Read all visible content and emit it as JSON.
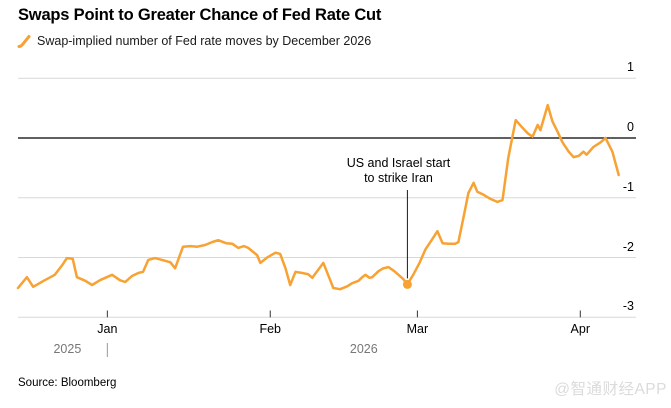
{
  "title": "Swaps Point to Greater Chance of Fed Rate Cut",
  "legend": {
    "label": "Swap-implied number of Fed rate moves by December 2026"
  },
  "source": "Source: Bloomberg",
  "watermark": "@智通财经APP",
  "annotation": {
    "line1": "US and Israel start",
    "line2": "to strike Iran",
    "day": 74.1,
    "text_center_day": 72.4
  },
  "colors": {
    "series_orange": "#F7A233",
    "grid": "#D8D8D8",
    "zero_line": "#000000",
    "tick": "#333333",
    "year_text": "#777777",
    "annotation_line": "#1a1a1a",
    "watermark_gray": "#dbdbdb"
  },
  "chart_data": {
    "type": "line",
    "title": "Swaps Point to Greater Chance of Fed Rate Cut",
    "ylabel": "",
    "xlabel": "",
    "ylim": [
      -3,
      1
    ],
    "grid": "horizontal",
    "legend_position": "top-left",
    "y_axis": {
      "ticks": [
        1,
        0,
        -1,
        -2,
        -3
      ],
      "zero_line_emphasized": true,
      "labels_side": "right"
    },
    "x_axis": {
      "month_ticks": [
        {
          "label": "Jan",
          "day": 17
        },
        {
          "label": "Feb",
          "day": 48
        },
        {
          "label": "Mar",
          "day": 76
        },
        {
          "label": "Apr",
          "day": 107
        }
      ],
      "years": [
        {
          "label": "2025",
          "day": 9.4
        },
        {
          "label": "2026",
          "day": 65.8
        }
      ],
      "year_divider_day": 17,
      "domain_days": [
        0,
        117.6
      ]
    },
    "marker": {
      "day": 74.1,
      "value": -2.45
    },
    "series": [
      {
        "name": "Swap-implied number of Fed rate moves by December 2026",
        "color": "#F7A233",
        "points": [
          [
            0,
            -2.51
          ],
          [
            1.7,
            -2.33
          ],
          [
            2.9,
            -2.49
          ],
          [
            5.1,
            -2.38
          ],
          [
            7,
            -2.29
          ],
          [
            8.4,
            -2.13
          ],
          [
            9.3,
            -2.01
          ],
          [
            10.4,
            -2.02
          ],
          [
            11.2,
            -2.33
          ],
          [
            12.8,
            -2.39
          ],
          [
            14.1,
            -2.46
          ],
          [
            15.6,
            -2.38
          ],
          [
            17.9,
            -2.29
          ],
          [
            19.4,
            -2.38
          ],
          [
            20.4,
            -2.41
          ],
          [
            21.7,
            -2.31
          ],
          [
            22.9,
            -2.26
          ],
          [
            23.8,
            -2.24
          ],
          [
            24.8,
            -2.04
          ],
          [
            26.1,
            -2.01
          ],
          [
            27.4,
            -2.04
          ],
          [
            29,
            -2.08
          ],
          [
            29.9,
            -2.18
          ],
          [
            31.4,
            -1.82
          ],
          [
            32.8,
            -1.81
          ],
          [
            34.1,
            -1.82
          ],
          [
            35.6,
            -1.79
          ],
          [
            37,
            -1.74
          ],
          [
            38.1,
            -1.71
          ],
          [
            39.6,
            -1.76
          ],
          [
            40.8,
            -1.77
          ],
          [
            41.9,
            -1.84
          ],
          [
            43,
            -1.81
          ],
          [
            43.8,
            -1.84
          ],
          [
            45.5,
            -1.96
          ],
          [
            46.1,
            -2.09
          ],
          [
            47.6,
            -1.99
          ],
          [
            49,
            -1.92
          ],
          [
            49.9,
            -1.94
          ],
          [
            50.9,
            -2.18
          ],
          [
            51.8,
            -2.46
          ],
          [
            52.8,
            -2.24
          ],
          [
            54.1,
            -2.26
          ],
          [
            55.2,
            -2.28
          ],
          [
            56,
            -2.34
          ],
          [
            57.1,
            -2.21
          ],
          [
            58.1,
            -2.09
          ],
          [
            59,
            -2.29
          ],
          [
            60,
            -2.51
          ],
          [
            61.3,
            -2.53
          ],
          [
            62.7,
            -2.48
          ],
          [
            63.6,
            -2.43
          ],
          [
            64.8,
            -2.39
          ],
          [
            65.5,
            -2.33
          ],
          [
            66.1,
            -2.29
          ],
          [
            66.9,
            -2.34
          ],
          [
            67.4,
            -2.33
          ],
          [
            68.6,
            -2.23
          ],
          [
            69.5,
            -2.18
          ],
          [
            70.5,
            -2.16
          ],
          [
            71.6,
            -2.23
          ],
          [
            72.4,
            -2.29
          ],
          [
            73.3,
            -2.36
          ],
          [
            74.1,
            -2.45
          ],
          [
            75.2,
            -2.29
          ],
          [
            76.4,
            -2.09
          ],
          [
            77.5,
            -1.87
          ],
          [
            78.7,
            -1.71
          ],
          [
            79.8,
            -1.56
          ],
          [
            80.8,
            -1.76
          ],
          [
            81.9,
            -1.77
          ],
          [
            83.2,
            -1.77
          ],
          [
            83.8,
            -1.74
          ],
          [
            84.8,
            -1.32
          ],
          [
            85.7,
            -0.92
          ],
          [
            86.7,
            -0.75
          ],
          [
            87.4,
            -0.9
          ],
          [
            88.6,
            -0.95
          ],
          [
            89.9,
            -1.02
          ],
          [
            91.2,
            -1.07
          ],
          [
            92.2,
            -1.04
          ],
          [
            93.3,
            -0.33
          ],
          [
            94.7,
            0.3
          ],
          [
            96,
            0.17
          ],
          [
            97,
            0.08
          ],
          [
            97.9,
            0.02
          ],
          [
            98.9,
            0.22
          ],
          [
            99.4,
            0.13
          ],
          [
            100.8,
            0.55
          ],
          [
            101.7,
            0.28
          ],
          [
            102.7,
            0.1
          ],
          [
            103.6,
            -0.07
          ],
          [
            104.8,
            -0.23
          ],
          [
            105.7,
            -0.32
          ],
          [
            106.7,
            -0.3
          ],
          [
            107.6,
            -0.23
          ],
          [
            108.2,
            -0.28
          ],
          [
            109.5,
            -0.15
          ],
          [
            110.9,
            -0.07
          ],
          [
            111.8,
            0
          ],
          [
            113.1,
            -0.23
          ],
          [
            114.3,
            -0.62
          ]
        ]
      }
    ]
  }
}
